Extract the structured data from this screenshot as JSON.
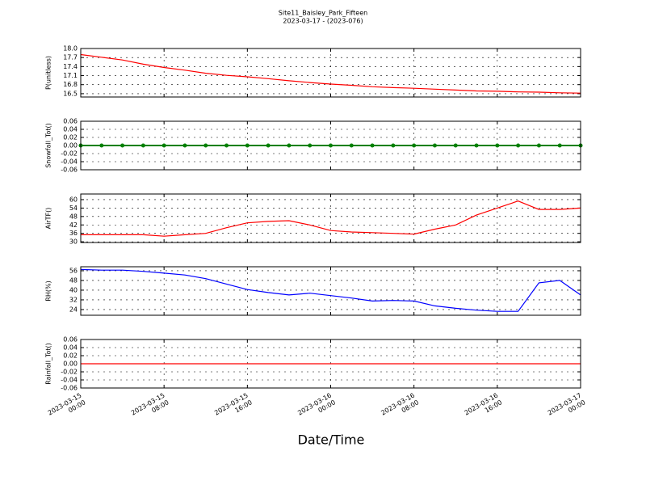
{
  "chart_data": [
    {
      "type": "line",
      "title": "Site11_Baisley_Park_Fifteen",
      "subtitle": "2023-03-17 - (2023-076)",
      "ylabel": "P(unitless)",
      "color": "#ff0000",
      "grid": true,
      "x": [
        "2023-03-15 00:00",
        "2023-03-15 02:00",
        "2023-03-15 04:00",
        "2023-03-15 06:00",
        "2023-03-15 08:00",
        "2023-03-15 10:00",
        "2023-03-15 12:00",
        "2023-03-15 14:00",
        "2023-03-15 16:00",
        "2023-03-15 18:00",
        "2023-03-15 20:00",
        "2023-03-15 22:00",
        "2023-03-16 00:00",
        "2023-03-16 02:00",
        "2023-03-16 04:00",
        "2023-03-16 06:00",
        "2023-03-16 08:00",
        "2023-03-16 10:00",
        "2023-03-16 12:00",
        "2023-03-16 14:00",
        "2023-03-16 16:00",
        "2023-03-16 18:00",
        "2023-03-16 20:00",
        "2023-03-16 22:00",
        "2023-03-17 00:00"
      ],
      "values": [
        17.8,
        17.71,
        17.62,
        17.48,
        17.37,
        17.28,
        17.18,
        17.11,
        17.06,
        17.0,
        16.93,
        16.87,
        16.82,
        16.78,
        16.73,
        16.7,
        16.68,
        16.65,
        16.62,
        16.59,
        16.58,
        16.56,
        16.55,
        16.53,
        16.52
      ],
      "xlim": [
        "2023-03-15 00:00",
        "2023-03-17 00:00"
      ],
      "xticks": [
        "2023-03-15 00:00",
        "2023-03-15 08:00",
        "2023-03-15 16:00",
        "2023-03-16 00:00",
        "2023-03-16 08:00",
        "2023-03-16 16:00",
        "2023-03-17 00:00"
      ],
      "ylim": [
        16.39,
        18.0
      ],
      "yticks": [
        16.5,
        16.8,
        17.1,
        17.4,
        17.7,
        {
          "value": 18.0,
          "label": "18.0"
        }
      ]
    },
    {
      "type": "line",
      "ylabel": "Snowfall_Tot()",
      "color": "#008000",
      "marker": true,
      "grid": true,
      "x": [
        "2023-03-15 00:00",
        "2023-03-15 02:00",
        "2023-03-15 04:00",
        "2023-03-15 06:00",
        "2023-03-15 08:00",
        "2023-03-15 10:00",
        "2023-03-15 12:00",
        "2023-03-15 14:00",
        "2023-03-15 16:00",
        "2023-03-15 18:00",
        "2023-03-15 20:00",
        "2023-03-15 22:00",
        "2023-03-16 00:00",
        "2023-03-16 02:00",
        "2023-03-16 04:00",
        "2023-03-16 06:00",
        "2023-03-16 08:00",
        "2023-03-16 10:00",
        "2023-03-16 12:00",
        "2023-03-16 14:00",
        "2023-03-16 16:00",
        "2023-03-16 18:00",
        "2023-03-16 20:00",
        "2023-03-16 22:00",
        "2023-03-17 00:00"
      ],
      "values": [
        0,
        0,
        0,
        0,
        0,
        0,
        0,
        0,
        0,
        0,
        0,
        0,
        0,
        0,
        0,
        0,
        0,
        0,
        0,
        0,
        0,
        0,
        0,
        0,
        0
      ],
      "xlim": [
        "2023-03-15 00:00",
        "2023-03-17 00:00"
      ],
      "xticks": [
        "2023-03-15 00:00",
        "2023-03-15 08:00",
        "2023-03-15 16:00",
        "2023-03-16 00:00",
        "2023-03-16 08:00",
        "2023-03-16 16:00",
        "2023-03-17 00:00"
      ],
      "ylim": [
        -0.06,
        0.06
      ],
      "yticks": [
        -0.06,
        -0.04,
        -0.02,
        {
          "value": 0,
          "label": "0.00"
        },
        0.02,
        0.04,
        0.06
      ]
    },
    {
      "type": "line",
      "ylabel": "AirTF()",
      "color": "#ff0000",
      "grid": true,
      "x": [
        "2023-03-15 00:00",
        "2023-03-15 02:00",
        "2023-03-15 04:00",
        "2023-03-15 06:00",
        "2023-03-15 08:00",
        "2023-03-15 10:00",
        "2023-03-15 12:00",
        "2023-03-15 14:00",
        "2023-03-15 16:00",
        "2023-03-15 18:00",
        "2023-03-15 20:00",
        "2023-03-15 22:00",
        "2023-03-16 00:00",
        "2023-03-16 02:00",
        "2023-03-16 04:00",
        "2023-03-16 06:00",
        "2023-03-16 08:00",
        "2023-03-16 10:00",
        "2023-03-16 12:00",
        "2023-03-16 14:00",
        "2023-03-16 16:00",
        "2023-03-16 18:00",
        "2023-03-16 20:00",
        "2023-03-16 22:00",
        "2023-03-17 00:00"
      ],
      "values": [
        35,
        35,
        35,
        35,
        34,
        35,
        36,
        40,
        43.5,
        44.5,
        45,
        42,
        38,
        37,
        36.5,
        36,
        35.5,
        39,
        42,
        49,
        54,
        59,
        53,
        53,
        54
      ],
      "xlim": [
        "2023-03-15 00:00",
        "2023-03-17 00:00"
      ],
      "xticks": [
        "2023-03-15 00:00",
        "2023-03-15 08:00",
        "2023-03-15 16:00",
        "2023-03-16 00:00",
        "2023-03-16 08:00",
        "2023-03-16 16:00",
        "2023-03-17 00:00"
      ],
      "ylim": [
        29.5,
        64
      ],
      "yticks": [
        30,
        36,
        42,
        48,
        54,
        60
      ]
    },
    {
      "type": "line",
      "ylabel": "RH(%)",
      "color": "#0000ff",
      "grid": true,
      "x": [
        "2023-03-15 00:00",
        "2023-03-15 02:00",
        "2023-03-15 04:00",
        "2023-03-15 06:00",
        "2023-03-15 08:00",
        "2023-03-15 10:00",
        "2023-03-15 12:00",
        "2023-03-15 14:00",
        "2023-03-15 16:00",
        "2023-03-15 18:00",
        "2023-03-15 20:00",
        "2023-03-15 22:00",
        "2023-03-16 00:00",
        "2023-03-16 02:00",
        "2023-03-16 04:00",
        "2023-03-16 06:00",
        "2023-03-16 08:00",
        "2023-03-16 10:00",
        "2023-03-16 12:00",
        "2023-03-16 14:00",
        "2023-03-16 16:00",
        "2023-03-16 18:00",
        "2023-03-16 20:00",
        "2023-03-16 22:00",
        "2023-03-17 00:00"
      ],
      "values": [
        57,
        56.5,
        56.5,
        55.5,
        54,
        52.5,
        49.5,
        45,
        40.5,
        38,
        36,
        37.5,
        35.5,
        33.5,
        31,
        31.5,
        31,
        27,
        25,
        23.5,
        22.5,
        22.5,
        46,
        48,
        36
      ],
      "xlim": [
        "2023-03-15 00:00",
        "2023-03-17 00:00"
      ],
      "xticks": [
        "2023-03-15 00:00",
        "2023-03-15 08:00",
        "2023-03-15 16:00",
        "2023-03-16 00:00",
        "2023-03-16 08:00",
        "2023-03-16 16:00",
        "2023-03-17 00:00"
      ],
      "ylim": [
        19.3,
        59.3
      ],
      "yticks": [
        24,
        32,
        40,
        48,
        56
      ]
    },
    {
      "type": "line",
      "ylabel": "Rainfall_Tot()",
      "xlabel": "Date/Time",
      "color": "#ff0000",
      "grid": true,
      "x": [
        "2023-03-15 00:00",
        "2023-03-15 02:00",
        "2023-03-15 04:00",
        "2023-03-15 06:00",
        "2023-03-15 08:00",
        "2023-03-15 10:00",
        "2023-03-15 12:00",
        "2023-03-15 14:00",
        "2023-03-15 16:00",
        "2023-03-15 18:00",
        "2023-03-15 20:00",
        "2023-03-15 22:00",
        "2023-03-16 00:00",
        "2023-03-16 02:00",
        "2023-03-16 04:00",
        "2023-03-16 06:00",
        "2023-03-16 08:00",
        "2023-03-16 10:00",
        "2023-03-16 12:00",
        "2023-03-16 14:00",
        "2023-03-16 16:00",
        "2023-03-16 18:00",
        "2023-03-16 20:00",
        "2023-03-16 22:00",
        "2023-03-17 00:00"
      ],
      "values": [
        0,
        0,
        0,
        0,
        0,
        0,
        0,
        0,
        0,
        0,
        0,
        0,
        0,
        0,
        0,
        0,
        0,
        0,
        0,
        0,
        0,
        0,
        0,
        0,
        0
      ],
      "xlim": [
        "2023-03-15 00:00",
        "2023-03-17 00:00"
      ],
      "xticks": [
        "2023-03-15 00:00",
        "2023-03-15 08:00",
        "2023-03-15 16:00",
        "2023-03-16 00:00",
        "2023-03-16 08:00",
        "2023-03-16 16:00",
        "2023-03-17 00:00"
      ],
      "ylim": [
        -0.06,
        0.06
      ],
      "yticks": [
        -0.06,
        -0.04,
        -0.02,
        {
          "value": 0,
          "label": "0.00"
        },
        0.02,
        0.04,
        0.06
      ]
    }
  ]
}
